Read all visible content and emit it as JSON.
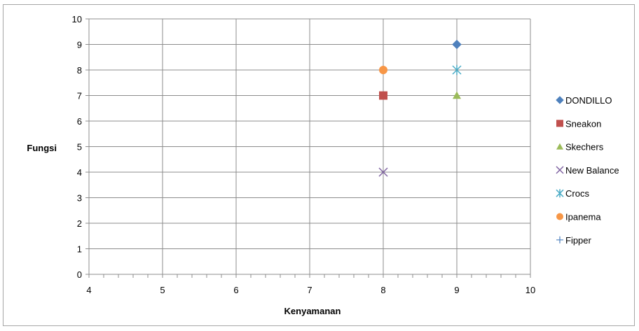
{
  "chart_data": {
    "type": "scatter",
    "title": "",
    "xlabel": "Kenyamanan",
    "ylabel": "Fungsi",
    "xlim": [
      4,
      10
    ],
    "ylim": [
      0,
      10
    ],
    "xticks": [
      "4",
      "5",
      "6",
      "7",
      "8",
      "9",
      "10"
    ],
    "yticks": [
      "0",
      "1",
      "2",
      "3",
      "4",
      "5",
      "6",
      "7",
      "8",
      "9",
      "10"
    ],
    "grid": true,
    "legend_position": "right",
    "series": [
      {
        "name": "DONDILLO",
        "marker": "diamond",
        "color": "#4f81bd",
        "points": [
          {
            "x": 9,
            "y": 9
          }
        ]
      },
      {
        "name": "Sneakon",
        "marker": "square",
        "color": "#c0504d",
        "points": [
          {
            "x": 8,
            "y": 7
          }
        ]
      },
      {
        "name": "Skechers",
        "marker": "triangle",
        "color": "#9bbb59",
        "points": [
          {
            "x": 9,
            "y": 7
          }
        ]
      },
      {
        "name": "New Balance",
        "marker": "x",
        "color": "#8064a2",
        "points": [
          {
            "x": 8,
            "y": 4
          }
        ]
      },
      {
        "name": "Crocs",
        "marker": "star",
        "color": "#4bacc6",
        "points": [
          {
            "x": 9,
            "y": 8
          }
        ]
      },
      {
        "name": "Ipanema",
        "marker": "circle",
        "color": "#f79646",
        "points": [
          {
            "x": 8,
            "y": 8
          }
        ]
      },
      {
        "name": "Fipper",
        "marker": "plus",
        "color": "#4f81bd",
        "points": []
      }
    ]
  }
}
